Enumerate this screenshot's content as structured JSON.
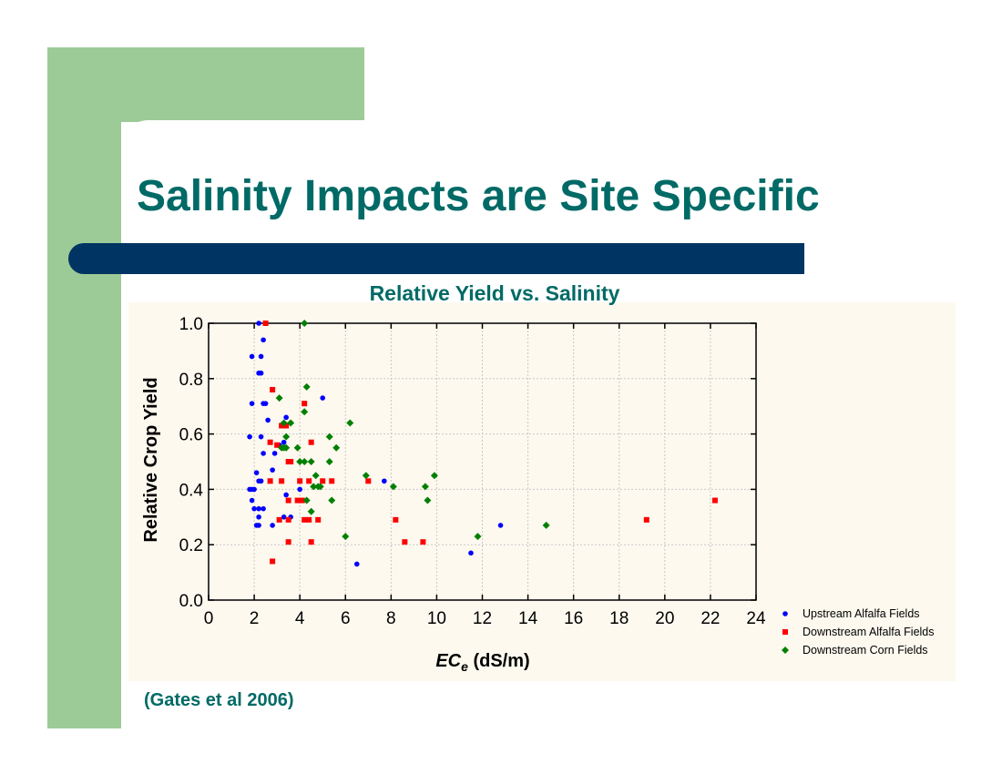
{
  "slide": {
    "title": "Salinity Impacts are Site Specific",
    "citation": "(Gates et al 2006)"
  },
  "colors": {
    "title": "#006a66",
    "accent_green": "#9dcb97",
    "navy_bar": "#003462",
    "chart_background": "#fdf9ef"
  },
  "chart_data": {
    "type": "scatter",
    "title": "Relative Yield vs. Salinity",
    "xlabel_main": "EC",
    "xlabel_sub": "e",
    "xlabel_unit": " (dS/m)",
    "ylabel": "Relative Crop Yield",
    "xlim": [
      0,
      24
    ],
    "ylim": [
      0,
      1.0
    ],
    "x_ticks": [
      "0",
      "2",
      "4",
      "6",
      "8",
      "10",
      "12",
      "14",
      "16",
      "18",
      "20",
      "22",
      "24"
    ],
    "y_ticks": [
      "0.0",
      "0.2",
      "0.4",
      "0.6",
      "0.8",
      "1.0"
    ],
    "grid": true,
    "legend_position": "bottom-right outside",
    "series": [
      {
        "name": "Upstream Alfalfa Fields",
        "color": "#0000ff",
        "marker": "circle",
        "points": [
          [
            2.2,
            1.0
          ],
          [
            1.9,
            0.88
          ],
          [
            2.3,
            0.88
          ],
          [
            2.4,
            0.94
          ],
          [
            2.2,
            0.82
          ],
          [
            2.3,
            0.82
          ],
          [
            1.9,
            0.71
          ],
          [
            2.4,
            0.71
          ],
          [
            2.5,
            0.71
          ],
          [
            2.6,
            0.65
          ],
          [
            2.3,
            0.59
          ],
          [
            1.8,
            0.59
          ],
          [
            3.4,
            0.66
          ],
          [
            3.3,
            0.57
          ],
          [
            2.4,
            0.53
          ],
          [
            2.9,
            0.53
          ],
          [
            3.1,
            0.56
          ],
          [
            2.8,
            0.47
          ],
          [
            2.1,
            0.46
          ],
          [
            2.2,
            0.43
          ],
          [
            2.3,
            0.43
          ],
          [
            1.8,
            0.4
          ],
          [
            1.9,
            0.4
          ],
          [
            2.0,
            0.4
          ],
          [
            1.9,
            0.36
          ],
          [
            2.0,
            0.33
          ],
          [
            2.2,
            0.33
          ],
          [
            2.4,
            0.33
          ],
          [
            2.2,
            0.3
          ],
          [
            2.1,
            0.27
          ],
          [
            2.2,
            0.27
          ],
          [
            2.8,
            0.27
          ],
          [
            3.3,
            0.3
          ],
          [
            3.6,
            0.3
          ],
          [
            3.4,
            0.38
          ],
          [
            4.0,
            0.4
          ],
          [
            5.0,
            0.73
          ],
          [
            7.7,
            0.43
          ],
          [
            12.8,
            0.27
          ],
          [
            11.5,
            0.17
          ],
          [
            6.5,
            0.13
          ]
        ]
      },
      {
        "name": "Downstream Alfalfa Fields",
        "color": "#ff0000",
        "marker": "square",
        "points": [
          [
            2.5,
            1.0
          ],
          [
            2.8,
            0.76
          ],
          [
            4.2,
            0.71
          ],
          [
            4.5,
            0.57
          ],
          [
            3.2,
            0.63
          ],
          [
            3.4,
            0.63
          ],
          [
            3.0,
            0.56
          ],
          [
            2.7,
            0.57
          ],
          [
            3.5,
            0.5
          ],
          [
            3.6,
            0.5
          ],
          [
            3.2,
            0.43
          ],
          [
            2.7,
            0.43
          ],
          [
            4.0,
            0.43
          ],
          [
            4.4,
            0.43
          ],
          [
            5.0,
            0.43
          ],
          [
            5.4,
            0.43
          ],
          [
            3.5,
            0.36
          ],
          [
            3.9,
            0.36
          ],
          [
            4.1,
            0.36
          ],
          [
            3.1,
            0.29
          ],
          [
            3.5,
            0.29
          ],
          [
            4.2,
            0.29
          ],
          [
            4.4,
            0.29
          ],
          [
            4.8,
            0.29
          ],
          [
            3.5,
            0.21
          ],
          [
            4.5,
            0.21
          ],
          [
            2.8,
            0.14
          ],
          [
            7.0,
            0.43
          ],
          [
            8.2,
            0.29
          ],
          [
            8.6,
            0.21
          ],
          [
            9.4,
            0.21
          ],
          [
            19.2,
            0.29
          ],
          [
            22.2,
            0.36
          ]
        ]
      },
      {
        "name": "Downstream Corn Fields",
        "color": "#008000",
        "marker": "diamond",
        "points": [
          [
            4.2,
            1.0
          ],
          [
            4.3,
            0.77
          ],
          [
            3.1,
            0.73
          ],
          [
            4.2,
            0.68
          ],
          [
            3.3,
            0.64
          ],
          [
            3.6,
            0.64
          ],
          [
            6.2,
            0.64
          ],
          [
            3.4,
            0.59
          ],
          [
            5.3,
            0.59
          ],
          [
            3.2,
            0.55
          ],
          [
            3.3,
            0.55
          ],
          [
            3.4,
            0.55
          ],
          [
            3.9,
            0.55
          ],
          [
            5.6,
            0.55
          ],
          [
            4.0,
            0.5
          ],
          [
            4.2,
            0.5
          ],
          [
            4.5,
            0.5
          ],
          [
            5.3,
            0.5
          ],
          [
            4.7,
            0.45
          ],
          [
            4.6,
            0.41
          ],
          [
            4.8,
            0.41
          ],
          [
            4.9,
            0.41
          ],
          [
            4.3,
            0.36
          ],
          [
            5.4,
            0.36
          ],
          [
            4.5,
            0.32
          ],
          [
            6.9,
            0.45
          ],
          [
            8.1,
            0.41
          ],
          [
            9.5,
            0.41
          ],
          [
            9.9,
            0.45
          ],
          [
            9.6,
            0.36
          ],
          [
            6.0,
            0.23
          ],
          [
            11.8,
            0.23
          ],
          [
            14.8,
            0.27
          ]
        ]
      }
    ]
  }
}
